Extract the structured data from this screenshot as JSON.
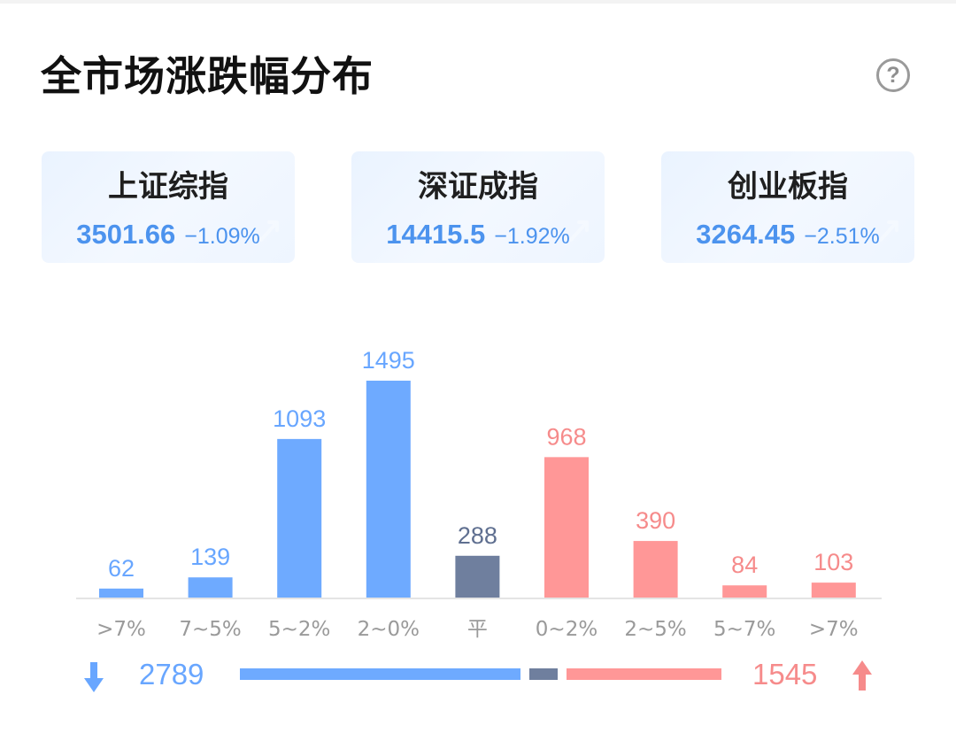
{
  "header": {
    "title": "全市场涨跌幅分布",
    "help_icon": "question-circle-icon"
  },
  "indices": [
    {
      "name": "上证综指",
      "value": "3501.66",
      "change": "−1.09%"
    },
    {
      "name": "深证成指",
      "value": "14415.5",
      "change": "−1.92%"
    },
    {
      "name": "创业板指",
      "value": "3264.45",
      "change": "−2.51%"
    }
  ],
  "colors": {
    "down": "#6eaaff",
    "flat": "#6f7f9e",
    "up": "#ff9797",
    "down_text": "#68a6ff",
    "flat_text": "#5f6f90",
    "up_text": "#f68b8b",
    "axis": "#e4e4e4",
    "tick_text": "#9a9a9a"
  },
  "chart_data": {
    "type": "bar",
    "title": "",
    "xlabel": "",
    "ylabel": "",
    "categories": [
      ">7%",
      "7~5%",
      "5~2%",
      "2~0%",
      "平",
      "0~2%",
      "2~5%",
      "5~7%",
      ">7%"
    ],
    "values": [
      62,
      139,
      1093,
      1495,
      288,
      968,
      390,
      84,
      103
    ],
    "category_groups": [
      "down",
      "down",
      "down",
      "down",
      "flat",
      "up",
      "up",
      "up",
      "up"
    ],
    "ylim": [
      0,
      1495
    ],
    "grid": false,
    "legend": "none"
  },
  "summary": {
    "down_count": "2789",
    "up_count": "1545",
    "down_icon": "arrow-down-icon",
    "up_icon": "arrow-up-icon"
  }
}
